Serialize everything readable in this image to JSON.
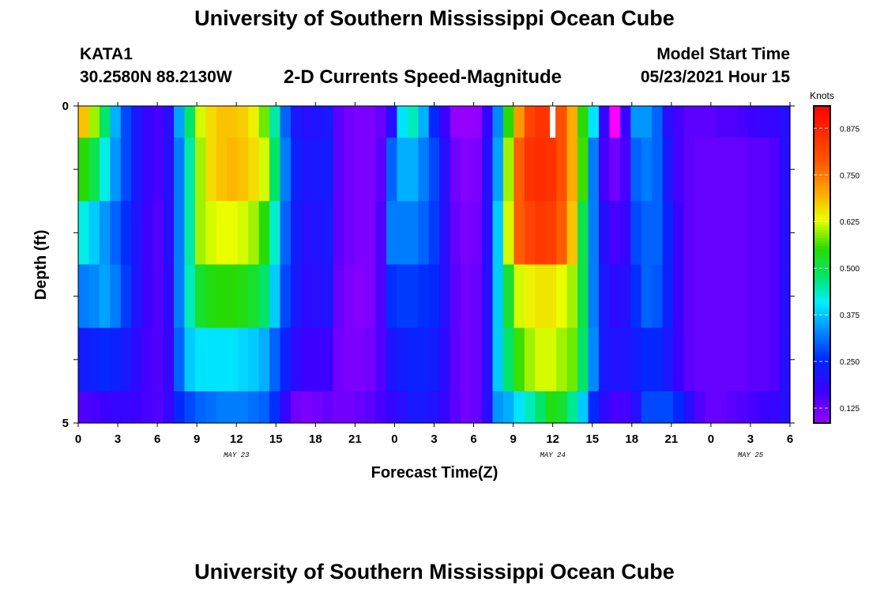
{
  "header": {
    "title": "University of Southern Mississippi Ocean Cube",
    "station_id": "KATA1",
    "coordinates": "30.2580N  88.2130W",
    "subtitle": "2-D Currents Speed-Magnitude",
    "model_start_label": "Model Start Time",
    "model_start_value": "05/23/2021 Hour 15"
  },
  "footer": {
    "title": "University of Southern Mississippi Ocean Cube"
  },
  "chart_data": {
    "type": "heatmap",
    "title": "2-D Currents Speed-Magnitude",
    "xlabel": "Forecast Time(Z)",
    "ylabel": "Depth (ft)",
    "x_range_hours": [
      0,
      54
    ],
    "y_range": [
      0,
      5
    ],
    "x_tick_labels": [
      "0",
      "3",
      "6",
      "9",
      "12",
      "15",
      "18",
      "21",
      "0",
      "3",
      "6",
      "9",
      "12",
      "15",
      "18",
      "21",
      "0",
      "3",
      "6"
    ],
    "y_tick_labels": [
      "0",
      "5"
    ],
    "date_labels": [
      {
        "label": "MAY 23",
        "hour": 12
      },
      {
        "label": "MAY 24",
        "hour": 36
      },
      {
        "label": "MAY 25",
        "hour": 51
      }
    ],
    "colorbar": {
      "label": "Knots",
      "min": 0.085,
      "max": 0.935,
      "ticks": [
        "0.125",
        "0.250",
        "0.375",
        "0.500",
        "0.625",
        "0.750",
        "0.875"
      ]
    },
    "missing_cells": [
      {
        "hour": 36,
        "layer": 0
      }
    ],
    "layer_bounds": [
      0,
      0.5,
      1.5,
      2.5,
      3.5,
      4.5,
      5.0
    ],
    "speed_knots": [
      [
        0.68,
        0.6,
        0.48,
        0.36,
        0.28,
        0.22,
        0.18,
        0.16,
        0.2,
        0.35,
        0.48,
        0.62,
        0.66,
        0.68,
        0.68,
        0.67,
        0.64,
        0.58,
        0.45,
        0.3,
        0.22,
        0.2,
        0.21,
        0.22,
        0.14,
        0.12,
        0.11,
        0.11,
        0.13,
        0.2,
        0.4,
        0.44,
        0.36,
        0.25,
        0.17,
        0.09,
        0.08,
        0.09,
        0.18,
        0.33,
        0.55,
        0.72,
        0.82,
        0.85,
        0.84,
        0.8,
        0.7,
        0.55,
        0.4,
        0.18,
        0.05,
        0.17,
        0.34,
        0.34,
        0.3,
        0.2,
        0.16,
        0.14,
        0.14,
        0.14,
        0.15,
        0.15,
        0.16,
        0.17,
        0.18,
        0.18,
        0.2
      ],
      [
        0.55,
        0.5,
        0.42,
        0.34,
        0.28,
        0.22,
        0.18,
        0.16,
        0.2,
        0.32,
        0.45,
        0.6,
        0.66,
        0.68,
        0.69,
        0.68,
        0.66,
        0.62,
        0.48,
        0.32,
        0.24,
        0.21,
        0.22,
        0.23,
        0.14,
        0.12,
        0.11,
        0.11,
        0.14,
        0.3,
        0.36,
        0.36,
        0.32,
        0.28,
        0.2,
        0.12,
        0.1,
        0.11,
        0.2,
        0.35,
        0.6,
        0.78,
        0.85,
        0.86,
        0.85,
        0.8,
        0.7,
        0.56,
        0.32,
        0.16,
        0.12,
        0.16,
        0.3,
        0.32,
        0.3,
        0.22,
        0.16,
        0.14,
        0.13,
        0.13,
        0.13,
        0.13,
        0.13,
        0.14,
        0.14,
        0.15,
        0.2
      ],
      [
        0.42,
        0.38,
        0.34,
        0.3,
        0.26,
        0.21,
        0.17,
        0.15,
        0.2,
        0.32,
        0.45,
        0.6,
        0.62,
        0.63,
        0.63,
        0.62,
        0.6,
        0.55,
        0.43,
        0.3,
        0.23,
        0.2,
        0.21,
        0.22,
        0.14,
        0.12,
        0.11,
        0.11,
        0.15,
        0.32,
        0.32,
        0.32,
        0.3,
        0.27,
        0.2,
        0.13,
        0.11,
        0.12,
        0.2,
        0.38,
        0.62,
        0.78,
        0.82,
        0.84,
        0.83,
        0.78,
        0.68,
        0.5,
        0.32,
        0.2,
        0.16,
        0.18,
        0.28,
        0.3,
        0.3,
        0.24,
        0.17,
        0.14,
        0.13,
        0.13,
        0.13,
        0.13,
        0.13,
        0.14,
        0.14,
        0.15,
        0.2
      ],
      [
        0.32,
        0.33,
        0.35,
        0.32,
        0.27,
        0.21,
        0.17,
        0.15,
        0.19,
        0.32,
        0.44,
        0.52,
        0.54,
        0.55,
        0.55,
        0.54,
        0.52,
        0.48,
        0.38,
        0.28,
        0.22,
        0.19,
        0.2,
        0.21,
        0.13,
        0.11,
        0.1,
        0.11,
        0.15,
        0.26,
        0.27,
        0.27,
        0.26,
        0.25,
        0.2,
        0.14,
        0.12,
        0.13,
        0.2,
        0.38,
        0.52,
        0.62,
        0.64,
        0.65,
        0.65,
        0.63,
        0.6,
        0.5,
        0.32,
        0.22,
        0.19,
        0.2,
        0.26,
        0.3,
        0.29,
        0.24,
        0.17,
        0.14,
        0.13,
        0.13,
        0.13,
        0.13,
        0.13,
        0.14,
        0.14,
        0.15,
        0.2
      ],
      [
        0.23,
        0.24,
        0.25,
        0.24,
        0.22,
        0.19,
        0.16,
        0.15,
        0.18,
        0.3,
        0.38,
        0.4,
        0.4,
        0.4,
        0.4,
        0.39,
        0.38,
        0.36,
        0.3,
        0.24,
        0.19,
        0.17,
        0.17,
        0.17,
        0.12,
        0.11,
        0.11,
        0.12,
        0.15,
        0.21,
        0.23,
        0.24,
        0.24,
        0.23,
        0.19,
        0.14,
        0.12,
        0.13,
        0.2,
        0.38,
        0.48,
        0.56,
        0.6,
        0.62,
        0.62,
        0.6,
        0.58,
        0.48,
        0.33,
        0.22,
        0.21,
        0.21,
        0.23,
        0.25,
        0.25,
        0.22,
        0.17,
        0.14,
        0.13,
        0.13,
        0.13,
        0.13,
        0.13,
        0.14,
        0.14,
        0.15,
        0.2
      ],
      [
        0.15,
        0.16,
        0.17,
        0.18,
        0.18,
        0.17,
        0.16,
        0.15,
        0.18,
        0.25,
        0.28,
        0.3,
        0.31,
        0.32,
        0.32,
        0.32,
        0.31,
        0.3,
        0.26,
        0.18,
        0.12,
        0.11,
        0.12,
        0.13,
        0.12,
        0.12,
        0.13,
        0.14,
        0.16,
        0.18,
        0.2,
        0.22,
        0.22,
        0.21,
        0.18,
        0.14,
        0.12,
        0.13,
        0.2,
        0.34,
        0.36,
        0.4,
        0.44,
        0.48,
        0.54,
        0.52,
        0.46,
        0.38,
        0.25,
        0.19,
        0.16,
        0.16,
        0.2,
        0.28,
        0.28,
        0.28,
        0.25,
        0.2,
        0.15,
        0.13,
        0.13,
        0.14,
        0.15,
        0.16,
        0.17,
        0.18,
        0.2
      ]
    ]
  }
}
